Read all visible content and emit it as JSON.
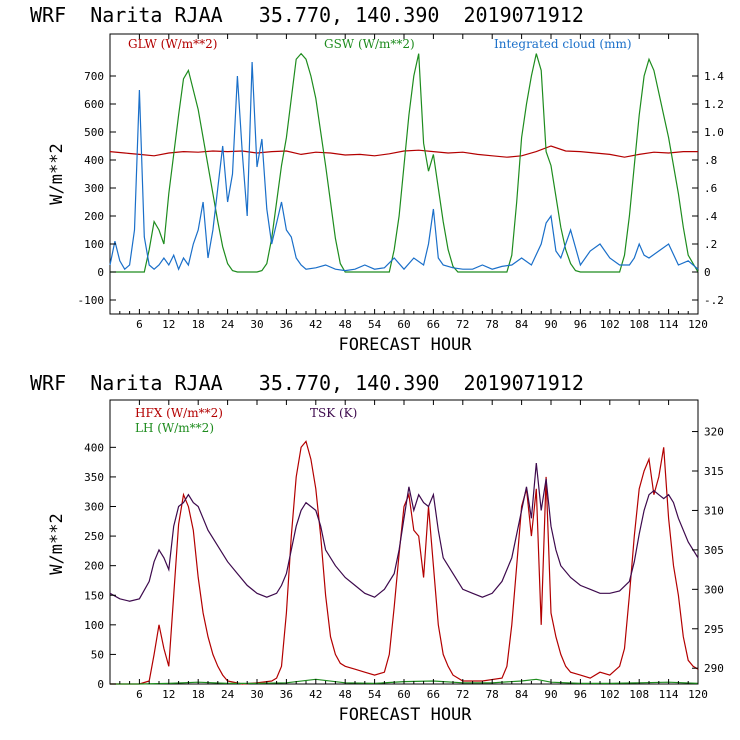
{
  "chart_data": [
    {
      "type": "line",
      "title": "WRF  Narita RJAA   35.770, 140.390  2019071912",
      "xlabel": "FORECAST HOUR",
      "ylabel": "W/m**2",
      "y2label": "",
      "xlim": [
        0,
        120
      ],
      "ylim": [
        -150,
        850
      ],
      "y2lim": [
        -0.3,
        1.7
      ],
      "x_ticks": [
        6,
        12,
        18,
        24,
        30,
        36,
        42,
        48,
        54,
        60,
        66,
        72,
        78,
        84,
        90,
        96,
        102,
        108,
        114,
        120
      ],
      "y_ticks": [
        -100,
        0,
        100,
        200,
        300,
        400,
        500,
        600,
        700
      ],
      "y2_ticks": [
        -0.2,
        0,
        0.2,
        0.4,
        0.6,
        0.8,
        1.0,
        1.2,
        1.4
      ],
      "y2_tick_labels": [
        "-.2",
        "0",
        ".2",
        ".4",
        ".6",
        ".8",
        "1.0",
        "1.2",
        "1.4"
      ],
      "legend_placement": "top",
      "series": [
        {
          "name": "GLW (W/m**2)",
          "color": "#b30000",
          "axis": "left",
          "x": [
            0,
            3,
            6,
            9,
            12,
            15,
            18,
            21,
            24,
            27,
            30,
            33,
            36,
            39,
            42,
            45,
            48,
            51,
            54,
            57,
            60,
            63,
            66,
            69,
            72,
            75,
            78,
            81,
            84,
            87,
            90,
            93,
            96,
            99,
            102,
            105,
            108,
            111,
            114,
            117,
            120
          ],
          "y": [
            430,
            425,
            420,
            415,
            425,
            430,
            428,
            432,
            430,
            432,
            425,
            430,
            432,
            420,
            428,
            425,
            418,
            420,
            415,
            422,
            432,
            435,
            430,
            425,
            428,
            420,
            415,
            410,
            415,
            430,
            450,
            432,
            430,
            425,
            420,
            410,
            420,
            428,
            425,
            430,
            430
          ]
        },
        {
          "name": "GSW (W/m**2)",
          "color": "#1e8c1e",
          "axis": "left",
          "x": [
            0,
            7,
            8,
            9,
            10,
            11,
            12,
            13,
            14,
            15,
            16,
            17,
            18,
            19,
            20,
            21,
            22,
            23,
            24,
            25,
            26,
            27,
            28,
            29,
            30,
            31,
            32,
            33,
            34,
            35,
            36,
            37,
            38,
            39,
            40,
            41,
            42,
            43,
            44,
            45,
            46,
            47,
            48,
            57,
            58,
            59,
            60,
            61,
            62,
            63,
            64,
            65,
            66,
            67,
            68,
            69,
            70,
            71,
            72,
            81,
            82,
            83,
            84,
            85,
            86,
            87,
            88,
            89,
            90,
            91,
            92,
            93,
            94,
            95,
            96,
            104,
            105,
            106,
            107,
            108,
            109,
            110,
            111,
            112,
            113,
            114,
            115,
            116,
            117,
            118,
            120
          ],
          "y": [
            0,
            0,
            80,
            180,
            150,
            100,
            280,
            420,
            560,
            690,
            720,
            650,
            580,
            480,
            380,
            280,
            180,
            90,
            30,
            5,
            0,
            0,
            0,
            0,
            0,
            5,
            30,
            120,
            250,
            380,
            480,
            620,
            760,
            780,
            760,
            700,
            620,
            500,
            380,
            250,
            120,
            30,
            0,
            0,
            80,
            200,
            380,
            560,
            700,
            780,
            460,
            360,
            420,
            300,
            180,
            80,
            20,
            0,
            0,
            0,
            60,
            250,
            480,
            600,
            700,
            780,
            720,
            430,
            380,
            270,
            160,
            80,
            30,
            5,
            0,
            0,
            60,
            200,
            380,
            560,
            700,
            760,
            720,
            640,
            560,
            480,
            380,
            280,
            160,
            60,
            0
          ]
        },
        {
          "name": "Integrated cloud (mm)",
          "color": "#1a6fc9",
          "axis": "right",
          "x": [
            0,
            1,
            2,
            3,
            4,
            5,
            6,
            7,
            8,
            9,
            10,
            11,
            12,
            13,
            14,
            15,
            16,
            17,
            18,
            19,
            20,
            21,
            22,
            23,
            24,
            25,
            26,
            27,
            28,
            29,
            30,
            31,
            32,
            33,
            34,
            35,
            36,
            37,
            38,
            39,
            40,
            42,
            44,
            46,
            48,
            50,
            52,
            54,
            56,
            58,
            60,
            62,
            64,
            65,
            66,
            67,
            68,
            70,
            72,
            74,
            76,
            78,
            80,
            82,
            84,
            86,
            88,
            89,
            90,
            91,
            92,
            94,
            96,
            98,
            100,
            102,
            104,
            106,
            107,
            108,
            109,
            110,
            112,
            114,
            116,
            118,
            120
          ],
          "y": [
            0.05,
            0.22,
            0.08,
            0.02,
            0.05,
            0.3,
            1.3,
            0.25,
            0.05,
            0.02,
            0.05,
            0.1,
            0.05,
            0.12,
            0.02,
            0.1,
            0.05,
            0.2,
            0.3,
            0.5,
            0.1,
            0.3,
            0.6,
            0.9,
            0.5,
            0.7,
            1.4,
            0.85,
            0.4,
            1.5,
            0.75,
            0.95,
            0.45,
            0.2,
            0.35,
            0.5,
            0.3,
            0.25,
            0.1,
            0.05,
            0.02,
            0.03,
            0.05,
            0.02,
            0.01,
            0.02,
            0.05,
            0.02,
            0.03,
            0.1,
            0.02,
            0.1,
            0.05,
            0.2,
            0.45,
            0.1,
            0.05,
            0.03,
            0.02,
            0.02,
            0.05,
            0.02,
            0.04,
            0.05,
            0.1,
            0.05,
            0.2,
            0.35,
            0.4,
            0.15,
            0.1,
            0.3,
            0.05,
            0.15,
            0.2,
            0.1,
            0.05,
            0.05,
            0.1,
            0.2,
            0.12,
            0.1,
            0.15,
            0.2,
            0.05,
            0.08,
            0.02
          ]
        }
      ]
    },
    {
      "type": "line",
      "title": "WRF  Narita RJAA   35.770, 140.390  2019071912",
      "xlabel": "FORECAST HOUR",
      "ylabel": "W/m**2",
      "y2label": "",
      "xlim": [
        0,
        120
      ],
      "ylim": [
        0,
        480
      ],
      "y2lim": [
        288,
        324
      ],
      "x_ticks": [
        6,
        12,
        18,
        24,
        30,
        36,
        42,
        48,
        54,
        60,
        66,
        72,
        78,
        84,
        90,
        96,
        102,
        108,
        114,
        120
      ],
      "y_ticks": [
        0,
        50,
        100,
        150,
        200,
        250,
        300,
        350,
        400
      ],
      "y2_ticks": [
        290,
        295,
        300,
        305,
        310,
        315,
        320
      ],
      "y2_tick_labels": [
        "290",
        "295",
        "300",
        "305",
        "310",
        "315",
        "320"
      ],
      "legend_placement": "top-left",
      "series": [
        {
          "name": "HFX (W/m**2)",
          "color": "#b30000",
          "axis": "left",
          "x": [
            0,
            3,
            6,
            8,
            9,
            10,
            11,
            12,
            13,
            14,
            15,
            16,
            17,
            18,
            19,
            20,
            21,
            22,
            23,
            24,
            27,
            30,
            33,
            34,
            35,
            36,
            37,
            38,
            39,
            40,
            41,
            42,
            43,
            44,
            45,
            46,
            47,
            48,
            50,
            52,
            54,
            56,
            57,
            58,
            59,
            60,
            61,
            62,
            63,
            64,
            65,
            66,
            67,
            68,
            69,
            70,
            72,
            76,
            80,
            81,
            82,
            83,
            84,
            85,
            86,
            87,
            88,
            89,
            90,
            91,
            92,
            93,
            94,
            96,
            98,
            100,
            102,
            104,
            105,
            106,
            107,
            108,
            109,
            110,
            111,
            112,
            113,
            114,
            115,
            116,
            117,
            118,
            119,
            120
          ],
          "y": [
            0,
            0,
            0,
            5,
            50,
            100,
            60,
            30,
            150,
            270,
            320,
            300,
            260,
            180,
            120,
            80,
            50,
            30,
            15,
            5,
            0,
            2,
            5,
            10,
            30,
            120,
            250,
            350,
            400,
            410,
            380,
            330,
            250,
            150,
            80,
            50,
            35,
            30,
            25,
            20,
            15,
            20,
            50,
            130,
            220,
            300,
            320,
            260,
            250,
            180,
            300,
            200,
            100,
            50,
            30,
            15,
            5,
            5,
            10,
            30,
            100,
            200,
            300,
            330,
            250,
            330,
            100,
            350,
            120,
            80,
            50,
            30,
            20,
            15,
            10,
            20,
            15,
            30,
            60,
            150,
            250,
            330,
            360,
            380,
            320,
            350,
            400,
            280,
            200,
            150,
            80,
            40,
            30,
            25
          ]
        },
        {
          "name": "LH (W/m**2)",
          "color": "#1e8c1e",
          "axis": "left",
          "x": [
            0,
            6,
            12,
            18,
            24,
            30,
            36,
            42,
            48,
            54,
            60,
            66,
            72,
            78,
            84,
            87,
            90,
            96,
            102,
            108,
            114,
            120
          ],
          "y": [
            0,
            0,
            1,
            3,
            1,
            1,
            2,
            8,
            2,
            1,
            4,
            5,
            2,
            2,
            5,
            8,
            3,
            1,
            1,
            2,
            3,
            1
          ]
        },
        {
          "name": "TSK (K)",
          "color": "#3d0a4d",
          "axis": "right",
          "x": [
            0,
            2,
            4,
            6,
            8,
            9,
            10,
            11,
            12,
            13,
            14,
            15,
            16,
            17,
            18,
            19,
            20,
            22,
            24,
            26,
            28,
            30,
            32,
            34,
            35,
            36,
            37,
            38,
            39,
            40,
            41,
            42,
            43,
            44,
            46,
            48,
            50,
            52,
            54,
            56,
            58,
            59,
            60,
            61,
            62,
            63,
            64,
            65,
            66,
            67,
            68,
            70,
            72,
            74,
            76,
            78,
            80,
            82,
            83,
            84,
            85,
            86,
            87,
            88,
            89,
            90,
            91,
            92,
            94,
            96,
            98,
            100,
            102,
            104,
            106,
            107,
            108,
            109,
            110,
            111,
            112,
            113,
            114,
            115,
            116,
            118,
            120
          ],
          "y": [
            299.5,
            298.8,
            298.5,
            298.8,
            301,
            303.5,
            305,
            304,
            302.5,
            308,
            310.5,
            311,
            312,
            311,
            310.5,
            309,
            307.5,
            305.5,
            303.5,
            302,
            300.5,
            299.5,
            299,
            299.5,
            300.5,
            302,
            305,
            308,
            310,
            311,
            310.5,
            310,
            308,
            305,
            303,
            301.5,
            300.5,
            299.5,
            299,
            300,
            302,
            305,
            309,
            313,
            310,
            312,
            311,
            310.5,
            312,
            307.5,
            304,
            302,
            300,
            299.5,
            299,
            299.5,
            301,
            304,
            307,
            310,
            313,
            309,
            316,
            310,
            314,
            308,
            305,
            303,
            301.5,
            300.5,
            300,
            299.5,
            299.5,
            299.8,
            301,
            303.5,
            307,
            310,
            312,
            312.5,
            312,
            311.5,
            312,
            311,
            309,
            306,
            304
          ]
        }
      ]
    }
  ]
}
